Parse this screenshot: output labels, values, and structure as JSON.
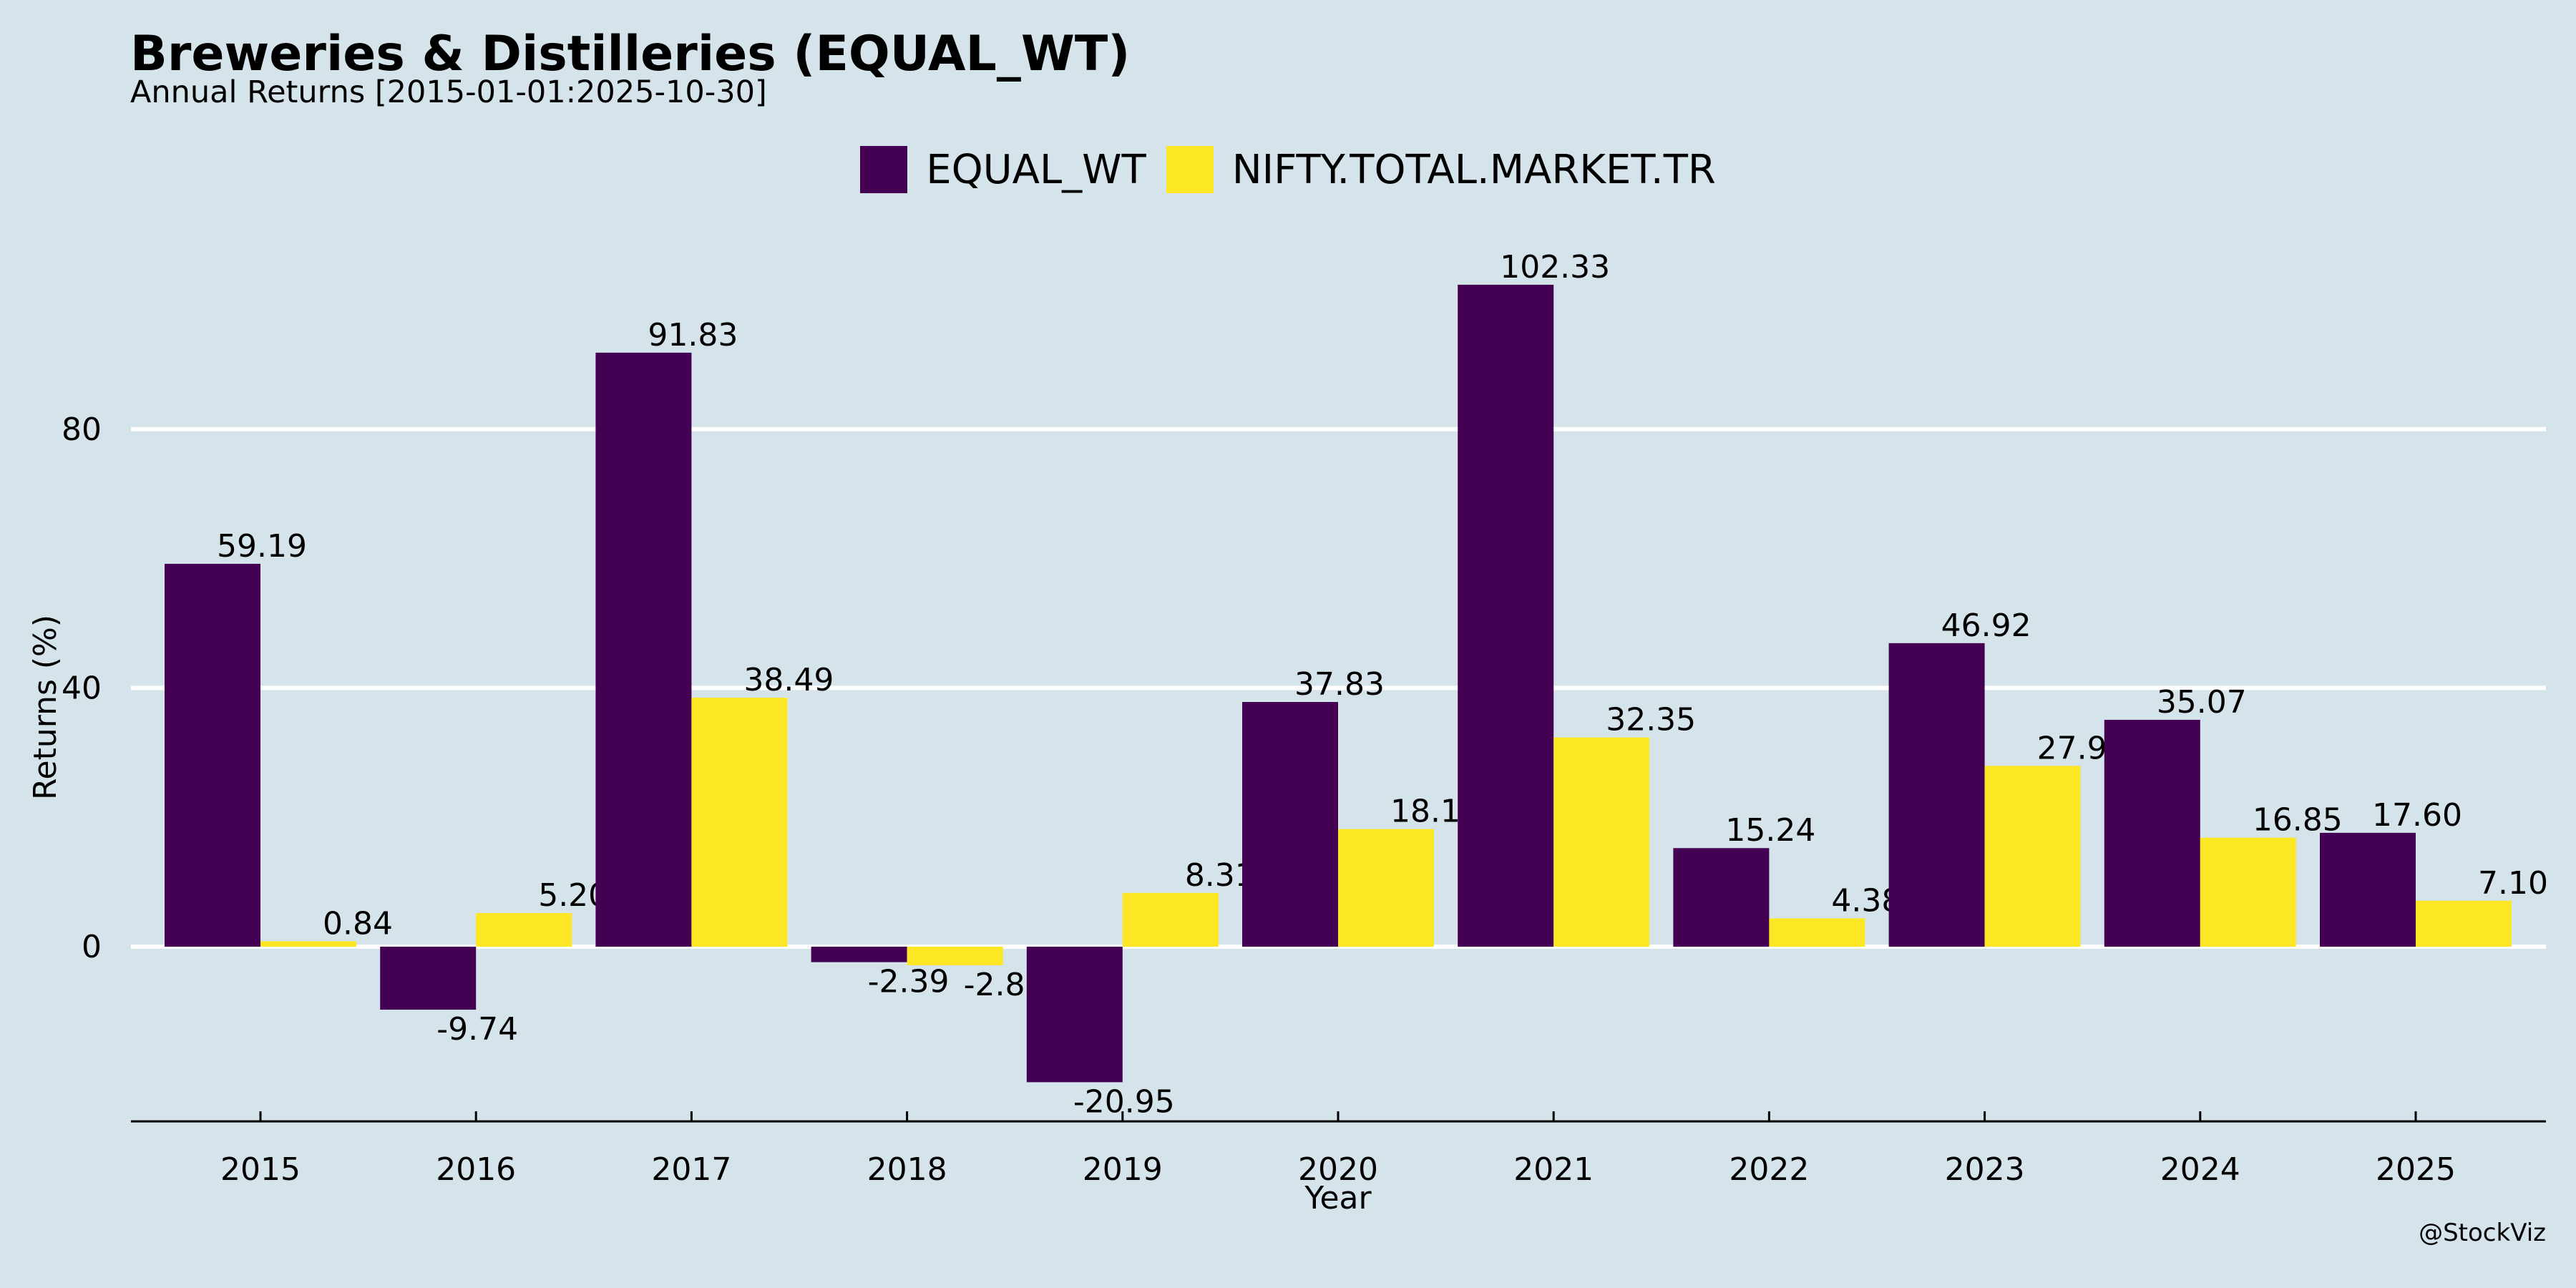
{
  "header": {
    "title": "Breweries & Distilleries (EQUAL_WT)",
    "subtitle": "Annual Returns [2015-01-01:2025-10-30]"
  },
  "footer": {
    "credit": "@StockViz"
  },
  "colors": {
    "background": "#d5e4eb",
    "equal_wt": "#440154",
    "benchmark": "#fde725",
    "grid": "#ffffff"
  },
  "chart_data": {
    "type": "bar",
    "title": "Breweries & Distilleries (EQUAL_WT)",
    "subtitle": "Annual Returns [2015-01-01:2025-10-30]",
    "xlabel": "Year",
    "ylabel": "Returns (%)",
    "categories": [
      "2015",
      "2016",
      "2017",
      "2018",
      "2019",
      "2020",
      "2021",
      "2022",
      "2023",
      "2024",
      "2025"
    ],
    "series": [
      {
        "name": "EQUAL_WT",
        "color": "#440154",
        "values": [
          59.19,
          -9.74,
          91.83,
          -2.39,
          -20.95,
          37.83,
          102.33,
          15.24,
          46.92,
          35.07,
          17.6
        ]
      },
      {
        "name": "NIFTY.TOTAL.MARKET.TR",
        "color": "#fde725",
        "values": [
          0.84,
          5.2,
          38.49,
          -2.87,
          8.31,
          18.18,
          32.35,
          4.38,
          27.95,
          16.85,
          7.1
        ]
      }
    ],
    "ylim": [
      -27,
      110
    ],
    "yticks": [
      0,
      40,
      80
    ],
    "grid": true,
    "legend": "top-center"
  }
}
